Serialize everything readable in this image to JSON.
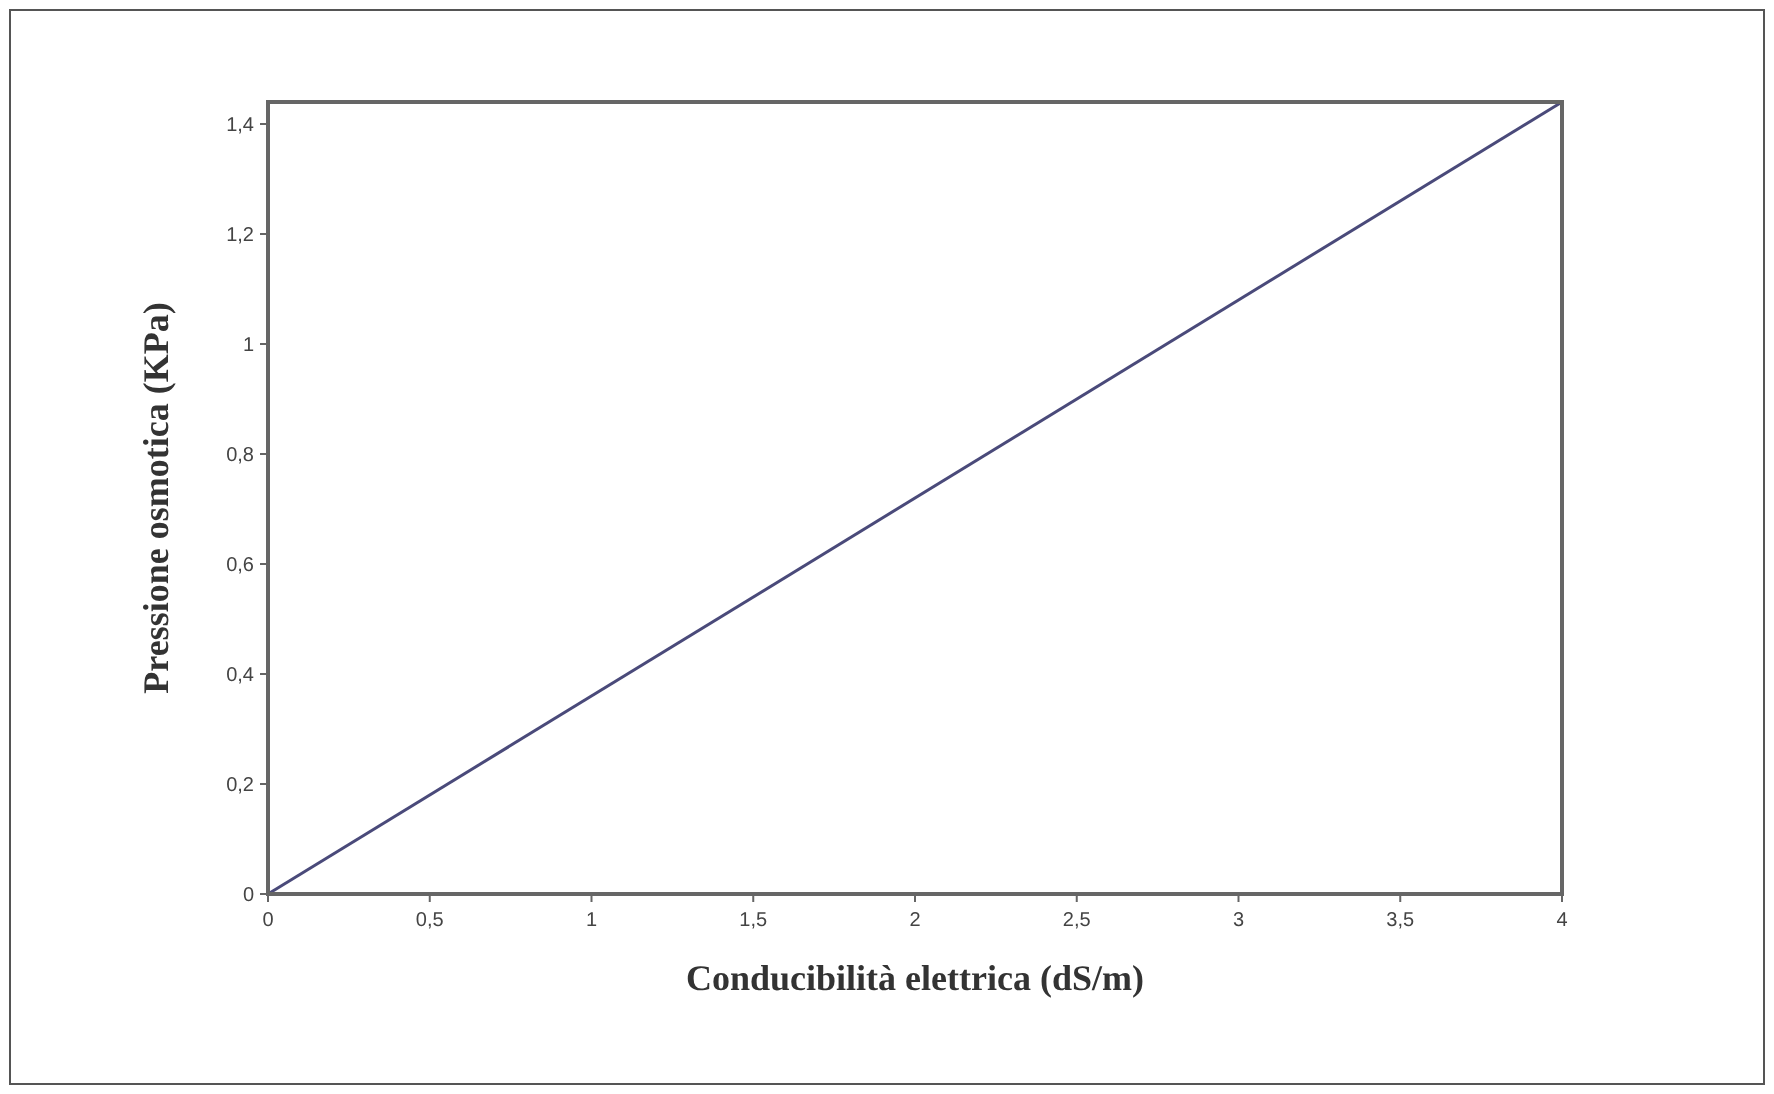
{
  "chart_data": {
    "type": "line",
    "xlabel": "Conducibilità elettrica (dS/m)",
    "ylabel": "Pressione osmotica (KPa)",
    "x": [
      0,
      4
    ],
    "series": [
      {
        "color": "#4a4a7a",
        "values": [
          0,
          1.44
        ]
      }
    ],
    "xlim": [
      0,
      4
    ],
    "ylim": [
      0,
      1.44
    ],
    "xticks": [
      0,
      {
        "value": 0.5,
        "label": "0,5"
      },
      1,
      {
        "value": 1.5,
        "label": "1,5"
      },
      2,
      {
        "value": 2.5,
        "label": "2,5"
      },
      3,
      {
        "value": 3.5,
        "label": "3,5"
      },
      4
    ],
    "yticks": [
      0,
      {
        "value": 0.2,
        "label": "0,2"
      },
      {
        "value": 0.4,
        "label": "0,4"
      },
      {
        "value": 0.6,
        "label": "0,6"
      },
      {
        "value": 0.8,
        "label": "0,8"
      },
      1,
      {
        "value": 1.2,
        "label": "1,2"
      },
      {
        "value": 1.4,
        "label": "1,4"
      }
    ],
    "marker": "none",
    "line_style": "solid"
  }
}
